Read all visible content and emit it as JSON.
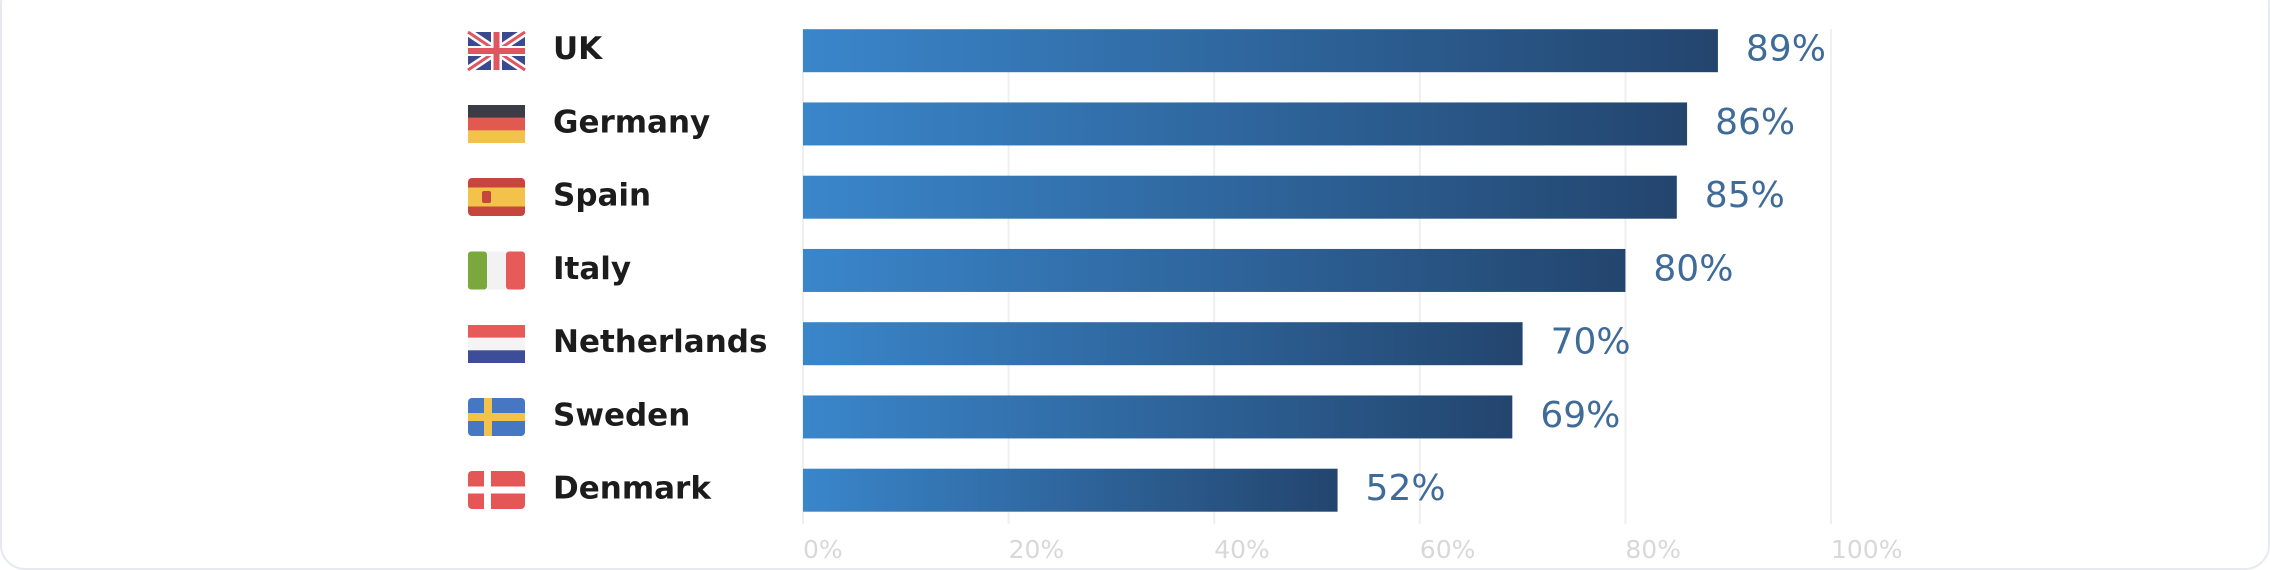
{
  "chart_data": {
    "type": "bar",
    "orientation": "horizontal",
    "categories": [
      "UK",
      "Germany",
      "Spain",
      "Italy",
      "Netherlands",
      "Sweden",
      "Denmark"
    ],
    "values": [
      89,
      86,
      85,
      80,
      70,
      69,
      52
    ],
    "value_labels": [
      "89%",
      "86%",
      "85%",
      "80%",
      "70%",
      "69%",
      "52%"
    ],
    "xlim": [
      0,
      100
    ],
    "xticks": [
      {
        "value": 0,
        "label": "0%"
      },
      {
        "value": 20,
        "label": "20%"
      },
      {
        "value": 40,
        "label": "40%"
      },
      {
        "value": 60,
        "label": "60%"
      },
      {
        "value": 80,
        "label": "80%"
      },
      {
        "value": 100,
        "label": "100%"
      }
    ],
    "grid": true,
    "color_start": "#3a86cb",
    "color_end": "#23456e"
  }
}
